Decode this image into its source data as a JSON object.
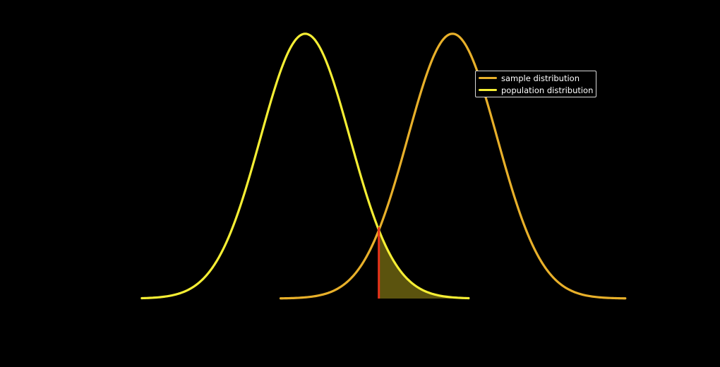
{
  "chart_data": {
    "type": "line",
    "title": "",
    "xlabel": "",
    "ylabel": "",
    "axes_visible": false,
    "grid": false,
    "background": "#000000",
    "xlim": [
      -4.8,
      7.5
    ],
    "ylim": [
      0,
      0.42
    ],
    "legend": {
      "placement": "top-right",
      "entries": [
        {
          "label": "sample distribution",
          "color": "#e8b02a"
        },
        {
          "label": "population distribution",
          "color": "#f5ee34"
        }
      ]
    },
    "series": [
      {
        "name": "population distribution",
        "color": "#f5ee34",
        "distribution": "normal",
        "mean": 0,
        "sd": 1,
        "x_range": [
          -3.65,
          3.65
        ]
      },
      {
        "name": "sample distribution",
        "color": "#e8b02a",
        "distribution": "normal",
        "mean": 3.29,
        "sd": 1,
        "x_range": [
          -0.55,
          7.15
        ]
      }
    ],
    "critical_value": {
      "x": 1.645,
      "color": "#e8321a"
    },
    "shaded_region": {
      "from": 1.645,
      "to": 3.65,
      "under": "population distribution",
      "color": "#6b6210"
    }
  }
}
